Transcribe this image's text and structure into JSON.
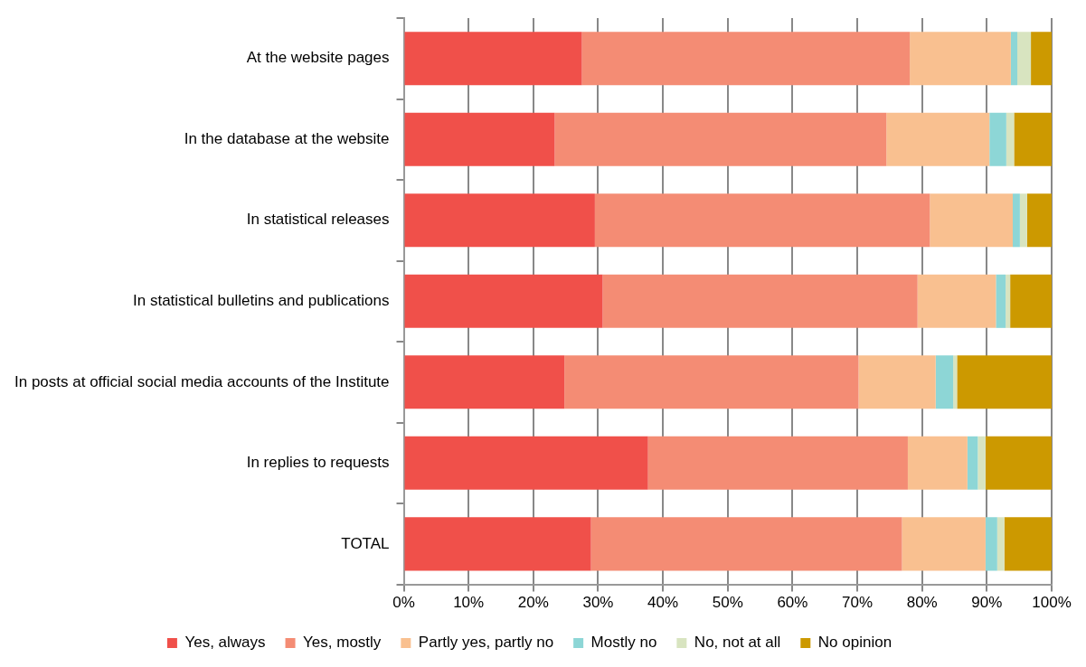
{
  "chart_data": {
    "type": "bar",
    "orientation": "horizontal",
    "stacked": true,
    "categories": [
      "At the website pages",
      "In the database at the website",
      "In statistical releases",
      "In statistical bulletins and publications",
      "In posts at official social media accounts of the Institute",
      "In replies to requests",
      "TOTAL"
    ],
    "series": [
      {
        "name": "Yes, always",
        "color": "#f0504a",
        "values": [
          27.5,
          23.3,
          29.5,
          30.7,
          24.8,
          37.7,
          28.9
        ]
      },
      {
        "name": "Yes, mostly",
        "color": "#f48c74",
        "values": [
          50.6,
          51.2,
          51.7,
          48.6,
          45.4,
          40.1,
          48.0
        ]
      },
      {
        "name": "Partly yes, partly no",
        "color": "#f9c090",
        "values": [
          15.6,
          15.9,
          12.8,
          12.1,
          11.9,
          9.2,
          12.9
        ]
      },
      {
        "name": "Mostly no",
        "color": "#8dd6d6",
        "values": [
          1.0,
          2.6,
          1.1,
          1.5,
          2.7,
          1.6,
          1.8
        ]
      },
      {
        "name": "No, not at all",
        "color": "#d8e4c0",
        "values": [
          2.1,
          1.2,
          1.1,
          0.7,
          0.6,
          1.2,
          1.1
        ]
      },
      {
        "name": "No opinion",
        "color": "#cc9900",
        "values": [
          3.2,
          5.8,
          3.8,
          6.4,
          14.6,
          10.2,
          7.3
        ]
      }
    ],
    "xlim": [
      0,
      100
    ],
    "xticks": [
      {
        "value": 0,
        "label": "0%"
      },
      {
        "value": 10,
        "label": "10%"
      },
      {
        "value": 20,
        "label": "20%"
      },
      {
        "value": 30,
        "label": "30%"
      },
      {
        "value": 40,
        "label": "40%"
      },
      {
        "value": 50,
        "label": "50%"
      },
      {
        "value": 60,
        "label": "60%"
      },
      {
        "value": 70,
        "label": "70%"
      },
      {
        "value": 80,
        "label": "80%"
      },
      {
        "value": 90,
        "label": "90%"
      },
      {
        "value": 100,
        "label": "100%"
      }
    ],
    "grid": "x",
    "legend": "bottom"
  }
}
